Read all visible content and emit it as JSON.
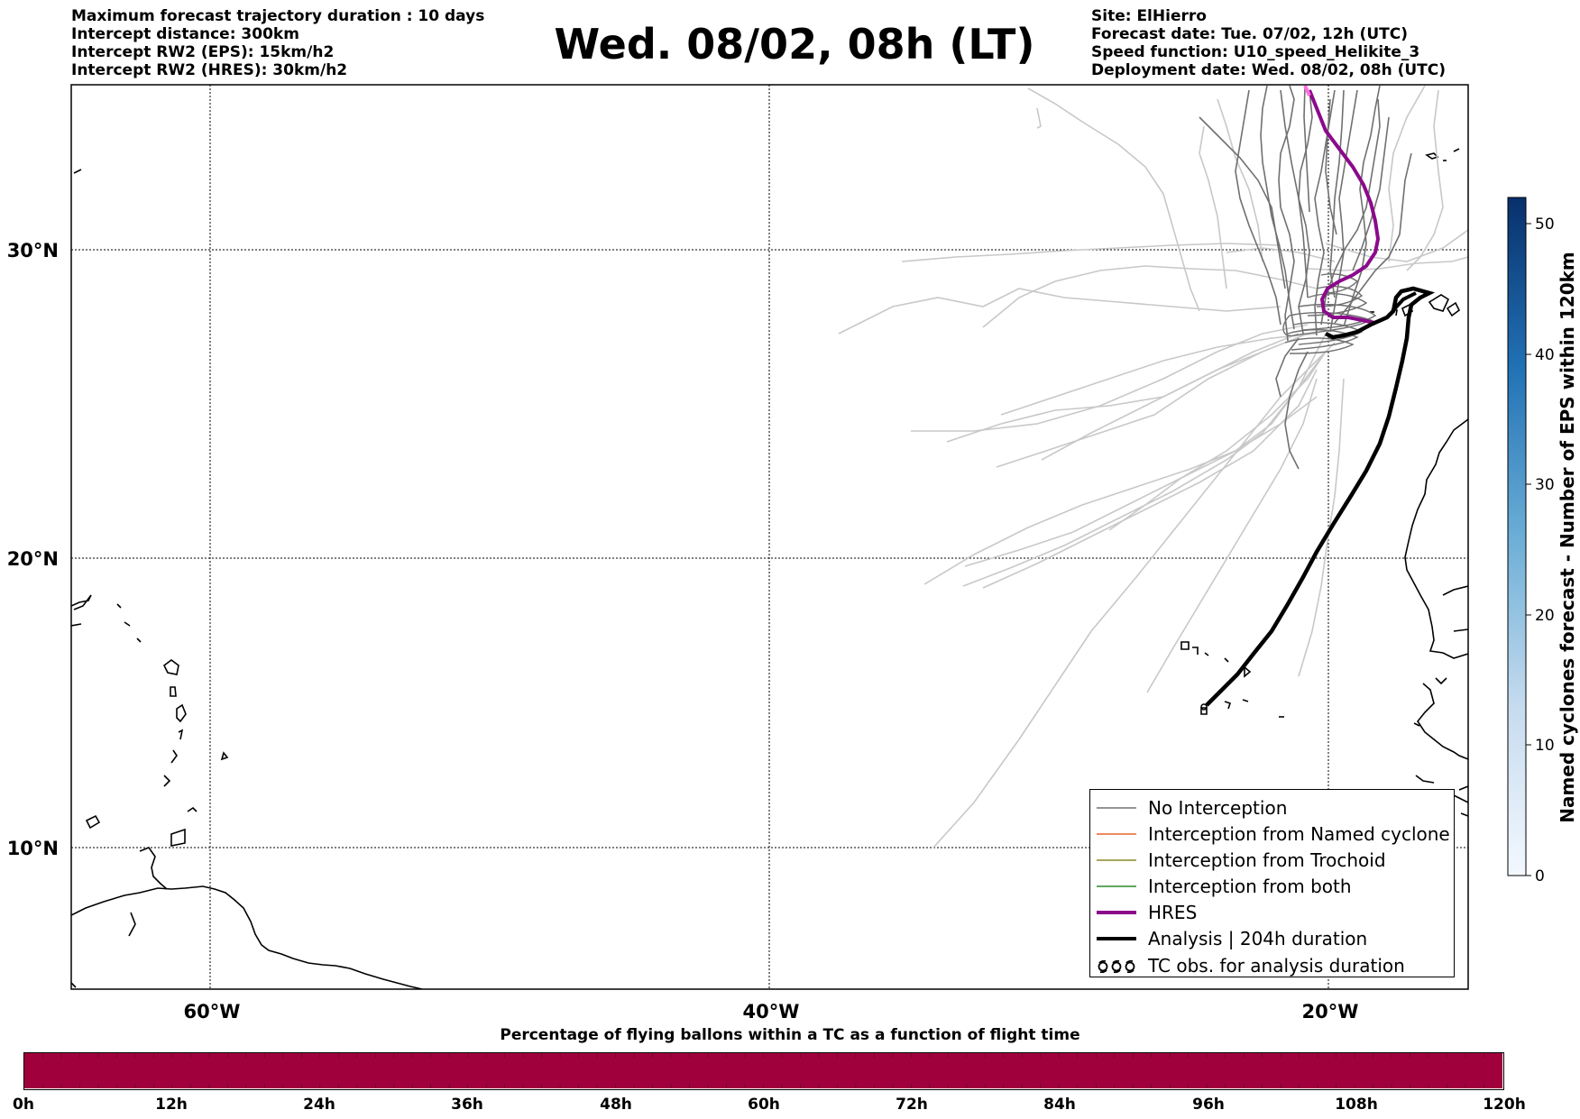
{
  "header": {
    "left": [
      "Maximum forecast trajectory duration : 10 days",
      "Intercept distance: 300km",
      "Intercept RW2 (EPS):  15km/h2",
      "Intercept RW2 (HRES): 30km/h2"
    ],
    "title": "Wed. 08/02, 08h (LT)",
    "right": [
      "Site: ElHierro",
      "Forecast date: Tue. 07/02, 12h (UTC)",
      "Speed function: U10_speed_Helikite_3",
      "Deployment date: Wed. 08/02, 08h (UTC)"
    ]
  },
  "map": {
    "lat_labels": [
      "30°N",
      "20°N",
      "10°N"
    ],
    "lon_labels": [
      "60°W",
      "40°W",
      "20°W"
    ],
    "site": "ElHierro",
    "colors": {
      "no_interception": "#707070",
      "eps_light": "#c8c8c8",
      "named_cyclone": "#e8622a",
      "trochoid": "#8a8a2a",
      "both": "#2a8a2a",
      "hres": "#8b0a8b",
      "analysis": "#000000"
    }
  },
  "legend": {
    "items": [
      {
        "label": "No Interception",
        "style": "gray-thin",
        "color": "#707070"
      },
      {
        "label": "Interception from Named cyclone",
        "style": "thin",
        "color": "#e8622a"
      },
      {
        "label": "Interception from Trochoid",
        "style": "thin",
        "color": "#8a8a2a"
      },
      {
        "label": "Interception from both",
        "style": "thin",
        "color": "#2a8a2a"
      },
      {
        "label": "HRES",
        "style": "thick",
        "color": "#8b0a8b"
      },
      {
        "label": "Analysis | 204h duration",
        "style": "thick",
        "color": "#000000"
      },
      {
        "label": "TC obs. for analysis duration",
        "style": "tc-symbol",
        "color": "#000000"
      }
    ]
  },
  "colorbar": {
    "title": "Named cyclones forecast - Number of EPS within 120km",
    "ticks": [
      "0",
      "10",
      "20",
      "30",
      "40",
      "50"
    ],
    "range": [
      0,
      52
    ],
    "colors": [
      "#e3eef9",
      "#08306b"
    ]
  },
  "bottom": {
    "title": "Percentage of flying ballons within a TC as a function of flight time",
    "ticks": [
      "0h",
      "12h",
      "24h",
      "36h",
      "48h",
      "60h",
      "72h",
      "84h",
      "96h",
      "108h",
      "120h"
    ],
    "bar_color": "#a0003c"
  }
}
